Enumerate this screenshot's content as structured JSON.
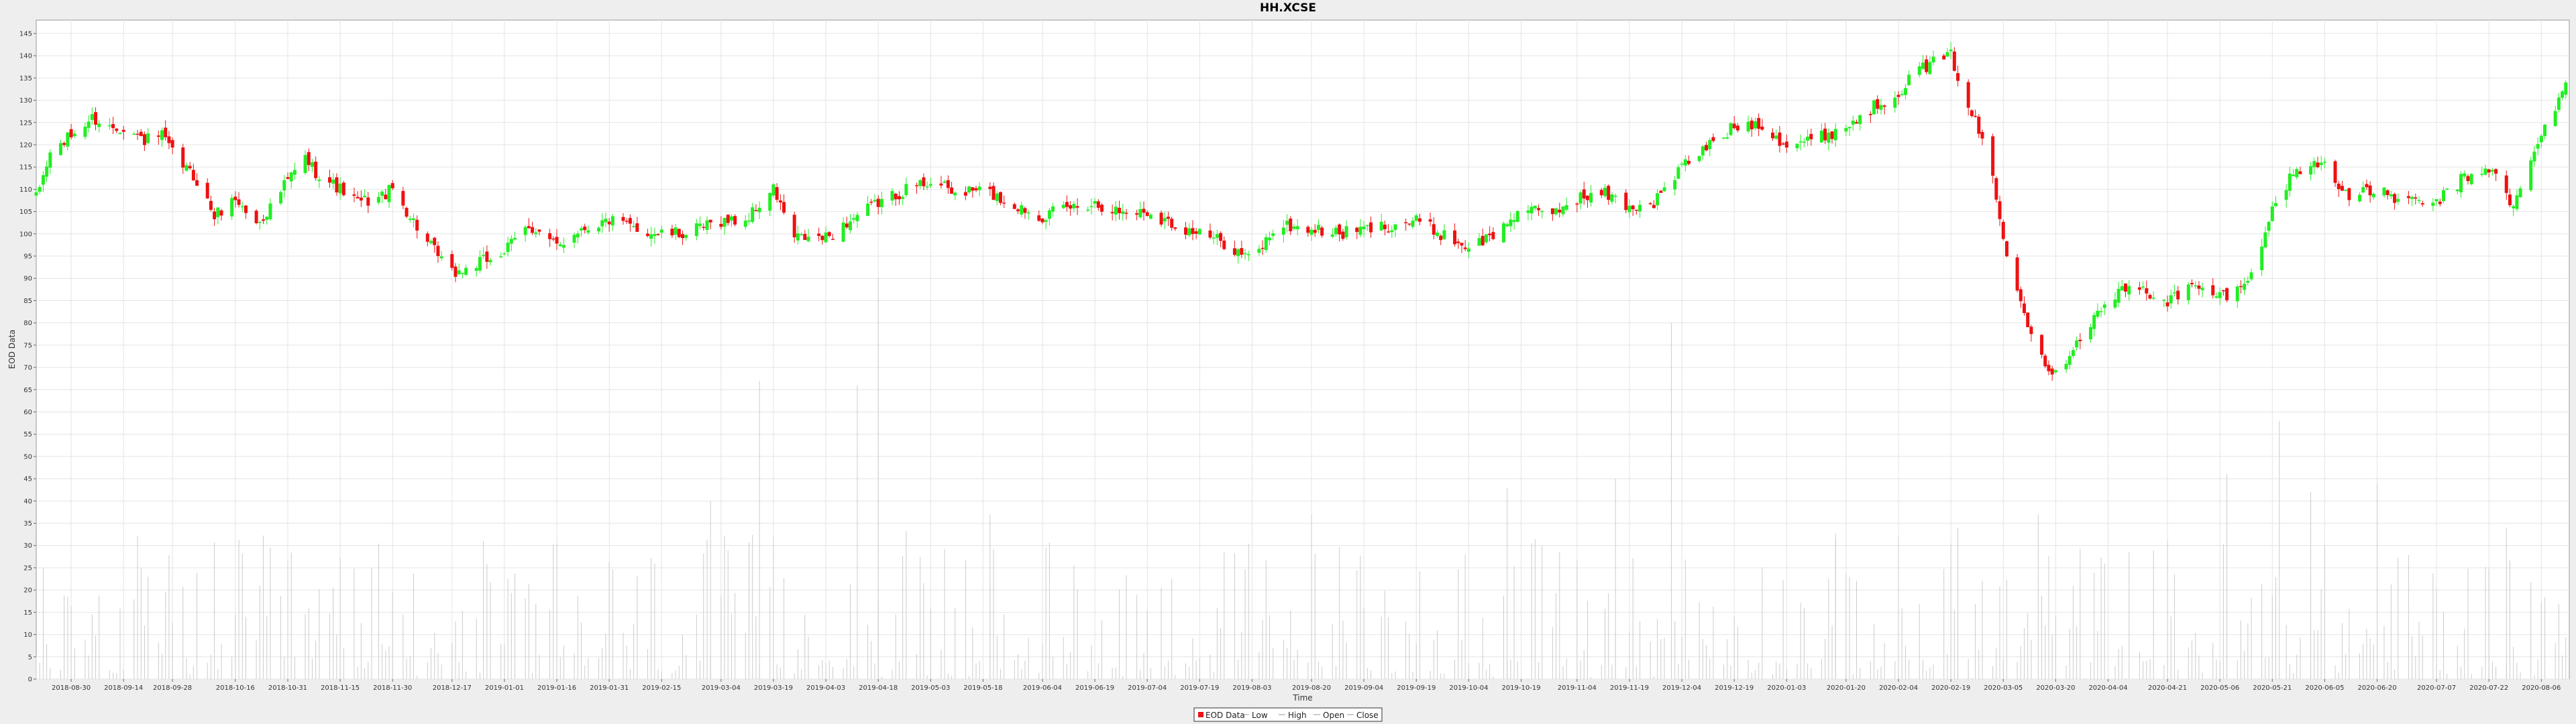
{
  "chart_data": {
    "type": "candlestick",
    "title": "HH.XCSE",
    "xlabel": "Time",
    "ylabel": "EOD Data",
    "ylim": [
      0,
      148
    ],
    "y_ticks": [
      0,
      5,
      10,
      15,
      20,
      25,
      30,
      35,
      40,
      45,
      50,
      55,
      60,
      65,
      70,
      75,
      80,
      85,
      90,
      95,
      100,
      105,
      110,
      115,
      120,
      125,
      130,
      135,
      140,
      145
    ],
    "x_ticks": [
      "2018-08-30",
      "2018-09-14",
      "2018-09-28",
      "2018-10-16",
      "2018-10-31",
      "2018-11-15",
      "2018-11-30",
      "2018-12-17",
      "2019-01-01",
      "2019-01-16",
      "2019-01-31",
      "2019-02-15",
      "2019-03-04",
      "2019-03-19",
      "2019-04-03",
      "2019-04-18",
      "2019-05-03",
      "2019-05-18",
      "2019-06-04",
      "2019-06-19",
      "2019-07-04",
      "2019-07-19",
      "2019-08-03",
      "2019-08-20",
      "2019-09-04",
      "2019-09-19",
      "2019-10-04",
      "2019-10-19",
      "2019-11-04",
      "2019-11-19",
      "2019-12-04",
      "2019-12-19",
      "2020-01-03",
      "2020-01-20",
      "2020-02-04",
      "2020-02-19",
      "2020-03-05",
      "2020-03-20",
      "2020-04-04",
      "2020-04-21",
      "2020-05-06",
      "2020-05-21",
      "2020-06-05",
      "2020-06-20",
      "2020-07-07",
      "2020-07-22",
      "2020-08-06"
    ],
    "x_range": [
      "2018-08-20",
      "2020-08-14"
    ],
    "grid": true,
    "legend": [
      "EOD Data",
      "Low",
      "High",
      "Open",
      "Close"
    ],
    "legend_position": "bottom-center",
    "colors": {
      "up": "#22ee22",
      "down": "#ee1111",
      "volume": "#cccccc",
      "grid": "#e4e4e4"
    },
    "close_series": [
      [
        "2018-08-20",
        108
      ],
      [
        "2018-08-24",
        118
      ],
      [
        "2018-08-30",
        122
      ],
      [
        "2018-09-05",
        126
      ],
      [
        "2018-09-10",
        124
      ],
      [
        "2018-09-14",
        124
      ],
      [
        "2018-09-20",
        121
      ],
      [
        "2018-09-25",
        122
      ],
      [
        "2018-09-28",
        118
      ],
      [
        "2018-10-05",
        112
      ],
      [
        "2018-10-10",
        104
      ],
      [
        "2018-10-16",
        108
      ],
      [
        "2018-10-22",
        102
      ],
      [
        "2018-10-26",
        106
      ],
      [
        "2018-10-31",
        112
      ],
      [
        "2018-11-05",
        117
      ],
      [
        "2018-11-08",
        114
      ],
      [
        "2018-11-15",
        110
      ],
      [
        "2018-11-20",
        107
      ],
      [
        "2018-11-26",
        108
      ],
      [
        "2018-11-30",
        110
      ],
      [
        "2018-12-05",
        104
      ],
      [
        "2018-12-10",
        98
      ],
      [
        "2018-12-17",
        91
      ],
      [
        "2018-12-21",
        92
      ],
      [
        "2019-01-01",
        96
      ],
      [
        "2019-01-08",
        102
      ],
      [
        "2019-01-16",
        97
      ],
      [
        "2019-01-22",
        101
      ],
      [
        "2019-01-31",
        103
      ],
      [
        "2019-02-08",
        101
      ],
      [
        "2019-02-15",
        100
      ],
      [
        "2019-02-22",
        100
      ],
      [
        "2019-03-04",
        103
      ],
      [
        "2019-03-11",
        103
      ],
      [
        "2019-03-19",
        110
      ],
      [
        "2019-03-25",
        99
      ],
      [
        "2019-04-03",
        99
      ],
      [
        "2019-04-10",
        103
      ],
      [
        "2019-04-18",
        107
      ],
      [
        "2019-04-26",
        110
      ],
      [
        "2019-05-03",
        112
      ],
      [
        "2019-05-10",
        109
      ],
      [
        "2019-05-18",
        110
      ],
      [
        "2019-05-25",
        107
      ],
      [
        "2019-06-04",
        104
      ],
      [
        "2019-06-12",
        106
      ],
      [
        "2019-06-19",
        107
      ],
      [
        "2019-06-26",
        105
      ],
      [
        "2019-07-04",
        105
      ],
      [
        "2019-07-12",
        102
      ],
      [
        "2019-07-19",
        100
      ],
      [
        "2019-07-26",
        98
      ],
      [
        "2019-08-03",
        94
      ],
      [
        "2019-08-10",
        102
      ],
      [
        "2019-08-20",
        101
      ],
      [
        "2019-08-28",
        100
      ],
      [
        "2019-09-04",
        101
      ],
      [
        "2019-09-12",
        102
      ],
      [
        "2019-09-19",
        103
      ],
      [
        "2019-09-26",
        100
      ],
      [
        "2019-10-04",
        97
      ],
      [
        "2019-10-12",
        100
      ],
      [
        "2019-10-19",
        106
      ],
      [
        "2019-10-26",
        104
      ],
      [
        "2019-11-04",
        108
      ],
      [
        "2019-11-12",
        109
      ],
      [
        "2019-11-19",
        106
      ],
      [
        "2019-11-26",
        107
      ],
      [
        "2019-12-04",
        115
      ],
      [
        "2019-12-12",
        120
      ],
      [
        "2019-12-19",
        124
      ],
      [
        "2019-12-26",
        125
      ],
      [
        "2020-01-03",
        120
      ],
      [
        "2020-01-10",
        121
      ],
      [
        "2020-01-20",
        124
      ],
      [
        "2020-01-27",
        128
      ],
      [
        "2020-02-04",
        132
      ],
      [
        "2020-02-10",
        137
      ],
      [
        "2020-02-19",
        140
      ],
      [
        "2020-02-24",
        129
      ],
      [
        "2020-03-01",
        117
      ],
      [
        "2020-03-05",
        99
      ],
      [
        "2020-03-10",
        86
      ],
      [
        "2020-03-14",
        75
      ],
      [
        "2020-03-20",
        68
      ],
      [
        "2020-03-25",
        75
      ],
      [
        "2020-03-30",
        80
      ],
      [
        "2020-04-04",
        85
      ],
      [
        "2020-04-10",
        88
      ],
      [
        "2020-04-15",
        87
      ],
      [
        "2020-04-21",
        85
      ],
      [
        "2020-04-28",
        88
      ],
      [
        "2020-05-06",
        86
      ],
      [
        "2020-05-13",
        88
      ],
      [
        "2020-05-21",
        105
      ],
      [
        "2020-05-27",
        114
      ],
      [
        "2020-06-05",
        116
      ],
      [
        "2020-06-12",
        108
      ],
      [
        "2020-06-20",
        110
      ],
      [
        "2020-06-28",
        107
      ],
      [
        "2020-07-07",
        107
      ],
      [
        "2020-07-14",
        112
      ],
      [
        "2020-07-22",
        115
      ],
      [
        "2020-07-29",
        106
      ],
      [
        "2020-08-06",
        122
      ],
      [
        "2020-08-13",
        134
      ]
    ],
    "volume_spikes": [
      [
        "2019-03-15",
        67
      ],
      [
        "2019-04-12",
        66
      ],
      [
        "2019-04-18",
        90
      ],
      [
        "2019-12-01",
        80
      ],
      [
        "2020-05-23",
        58
      ],
      [
        "2018-11-24",
        25
      ],
      [
        "2019-03-01",
        40
      ],
      [
        "2019-05-20",
        37
      ],
      [
        "2019-08-20",
        37
      ],
      [
        "2019-10-15",
        43
      ],
      [
        "2019-11-15",
        45
      ],
      [
        "2020-01-17",
        31
      ],
      [
        "2020-02-21",
        34
      ],
      [
        "2020-03-15",
        37
      ],
      [
        "2020-05-08",
        46
      ],
      [
        "2020-06-01",
        42
      ],
      [
        "2020-06-20",
        44
      ],
      [
        "2020-07-27",
        34
      ]
    ]
  }
}
